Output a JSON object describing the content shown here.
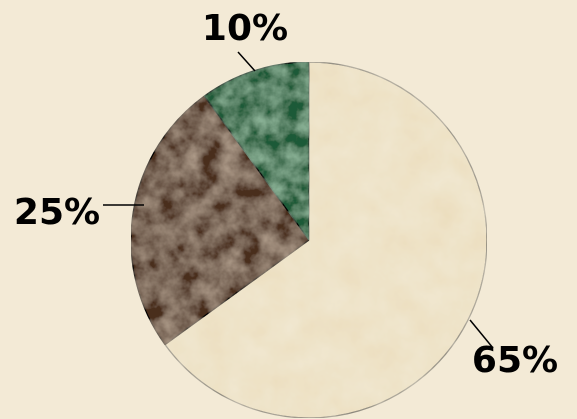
{
  "chart_data": {
    "type": "pie",
    "title": "",
    "slices": [
      {
        "label": "65%",
        "value": 65,
        "color": "#eadbb8",
        "texture": "beige-marble"
      },
      {
        "label": "25%",
        "value": 25,
        "color": "#4a2e1c",
        "texture": "brown-marble"
      },
      {
        "label": "10%",
        "value": 10,
        "color": "#1f5a37",
        "texture": "green-marble"
      }
    ],
    "start_angle_deg": 0,
    "direction": "clockwise",
    "background": "#f3ead6"
  }
}
